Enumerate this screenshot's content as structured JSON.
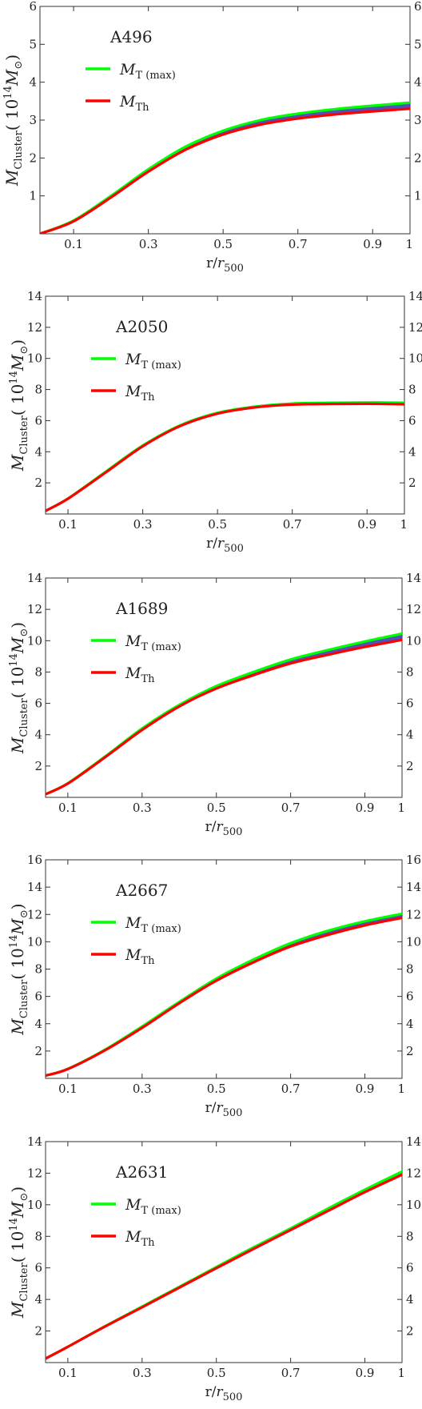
{
  "chart_data": [
    {
      "type": "line",
      "title": "A496",
      "xlabel": "r/r500",
      "ylabel": "MCluster( 10^14 M⊙)",
      "xlim": [
        0.01,
        1.0
      ],
      "ylim": [
        0,
        6
      ],
      "xticks": [
        "0.1",
        "0.3",
        "0.5",
        "0.7",
        "0.9",
        "1"
      ],
      "yticks": [
        "1",
        "2",
        "3",
        "4",
        "5",
        "6"
      ],
      "legend_position": "upper-left",
      "series": [
        {
          "name": "MT (max)",
          "color": "#00ff00",
          "x": [
            0.01,
            0.1,
            0.2,
            0.3,
            0.4,
            0.5,
            0.6,
            0.7,
            0.8,
            0.9,
            1.0
          ],
          "y": [
            0.0,
            0.35,
            1.0,
            1.7,
            2.3,
            2.72,
            3.0,
            3.17,
            3.29,
            3.38,
            3.46
          ]
        },
        {
          "name": "MTh",
          "color": "#ff0000",
          "x": [
            0.01,
            0.1,
            0.2,
            0.3,
            0.4,
            0.5,
            0.6,
            0.7,
            0.8,
            0.9,
            1.0
          ],
          "y": [
            0.0,
            0.33,
            0.96,
            1.64,
            2.22,
            2.62,
            2.88,
            3.04,
            3.15,
            3.23,
            3.3
          ]
        }
      ]
    },
    {
      "type": "line",
      "title": "A2050",
      "xlabel": "r/r500",
      "ylabel": "MCluster( 10^14 M⊙)",
      "xlim": [
        0.04,
        1.0
      ],
      "ylim": [
        0,
        14
      ],
      "xticks": [
        "0.1",
        "0.3",
        "0.5",
        "0.7",
        "0.9",
        "1"
      ],
      "yticks": [
        "2",
        "4",
        "6",
        "8",
        "10",
        "12",
        "14"
      ],
      "legend_position": "upper-left",
      "series": [
        {
          "name": "MT (max)",
          "color": "#00ff00",
          "x": [
            0.04,
            0.1,
            0.2,
            0.3,
            0.4,
            0.5,
            0.6,
            0.7,
            0.8,
            0.9,
            1.0
          ],
          "y": [
            0.2,
            1.0,
            2.7,
            4.4,
            5.7,
            6.5,
            6.9,
            7.1,
            7.15,
            7.17,
            7.15
          ]
        },
        {
          "name": "MTh",
          "color": "#ff0000",
          "x": [
            0.04,
            0.1,
            0.2,
            0.3,
            0.4,
            0.5,
            0.6,
            0.7,
            0.8,
            0.9,
            1.0
          ],
          "y": [
            0.2,
            0.98,
            2.65,
            4.35,
            5.65,
            6.45,
            6.85,
            7.03,
            7.07,
            7.08,
            7.05
          ]
        }
      ]
    },
    {
      "type": "line",
      "title": "A1689",
      "xlabel": "r/r500",
      "ylabel": "MCluster( 10^14 M⊙)",
      "xlim": [
        0.04,
        1.0
      ],
      "ylim": [
        0,
        14
      ],
      "xticks": [
        "0.1",
        "0.3",
        "0.5",
        "0.7",
        "0.9",
        "1"
      ],
      "yticks": [
        "2",
        "4",
        "6",
        "8",
        "10",
        "12",
        "14"
      ],
      "legend_position": "upper-left",
      "series": [
        {
          "name": "MT (max)",
          "color": "#00ff00",
          "x": [
            0.04,
            0.1,
            0.2,
            0.3,
            0.4,
            0.5,
            0.6,
            0.7,
            0.8,
            0.9,
            1.0
          ],
          "y": [
            0.2,
            0.9,
            2.6,
            4.4,
            5.9,
            7.1,
            8.0,
            8.8,
            9.4,
            9.95,
            10.45
          ]
        },
        {
          "name": "MTh",
          "color": "#ff0000",
          "x": [
            0.04,
            0.1,
            0.2,
            0.3,
            0.4,
            0.5,
            0.6,
            0.7,
            0.8,
            0.9,
            1.0
          ],
          "y": [
            0.2,
            0.88,
            2.55,
            4.3,
            5.8,
            6.95,
            7.8,
            8.55,
            9.1,
            9.6,
            10.05
          ]
        }
      ]
    },
    {
      "type": "line",
      "title": "A2667",
      "xlabel": "r/r500",
      "ylabel": "MCluster( 10^14 M⊙)",
      "xlim": [
        0.04,
        1.0
      ],
      "ylim": [
        0,
        16
      ],
      "xticks": [
        "0.1",
        "0.3",
        "0.5",
        "0.7",
        "0.9",
        "1"
      ],
      "yticks": [
        "2",
        "4",
        "6",
        "8",
        "10",
        "12",
        "14",
        "16"
      ],
      "legend_position": "upper-left",
      "series": [
        {
          "name": "MT (max)",
          "color": "#00ff00",
          "x": [
            0.04,
            0.1,
            0.2,
            0.3,
            0.4,
            0.5,
            0.6,
            0.7,
            0.8,
            0.9,
            1.0
          ],
          "y": [
            0.2,
            0.7,
            2.1,
            3.8,
            5.6,
            7.3,
            8.7,
            9.9,
            10.8,
            11.5,
            12.05
          ]
        },
        {
          "name": "MTh",
          "color": "#ff0000",
          "x": [
            0.04,
            0.1,
            0.2,
            0.3,
            0.4,
            0.5,
            0.6,
            0.7,
            0.8,
            0.9,
            1.0
          ],
          "y": [
            0.2,
            0.68,
            2.05,
            3.7,
            5.5,
            7.15,
            8.5,
            9.65,
            10.5,
            11.2,
            11.75
          ]
        }
      ]
    },
    {
      "type": "line",
      "title": "A2631",
      "xlabel": "r/r500",
      "ylabel": "MCluster( 10^14 M⊙)",
      "xlim": [
        0.04,
        1.0
      ],
      "ylim": [
        0,
        14
      ],
      "xticks": [
        "0.1",
        "0.3",
        "0.5",
        "0.7",
        "0.9",
        "1"
      ],
      "yticks": [
        "2",
        "4",
        "6",
        "8",
        "10",
        "12",
        "14"
      ],
      "legend_position": "upper-left",
      "series": [
        {
          "name": "MT (max)",
          "color": "#00ff00",
          "x": [
            0.04,
            0.1,
            0.2,
            0.3,
            0.4,
            0.5,
            0.6,
            0.7,
            0.8,
            0.9,
            1.0
          ],
          "y": [
            0.25,
            1.0,
            2.3,
            3.55,
            4.8,
            6.05,
            7.3,
            8.5,
            9.75,
            10.95,
            12.1
          ]
        },
        {
          "name": "MTh",
          "color": "#ff0000",
          "x": [
            0.04,
            0.1,
            0.2,
            0.3,
            0.4,
            0.5,
            0.6,
            0.7,
            0.8,
            0.9,
            1.0
          ],
          "y": [
            0.25,
            1.0,
            2.28,
            3.5,
            4.75,
            5.98,
            7.2,
            8.4,
            9.6,
            10.8,
            11.9
          ]
        }
      ]
    }
  ]
}
